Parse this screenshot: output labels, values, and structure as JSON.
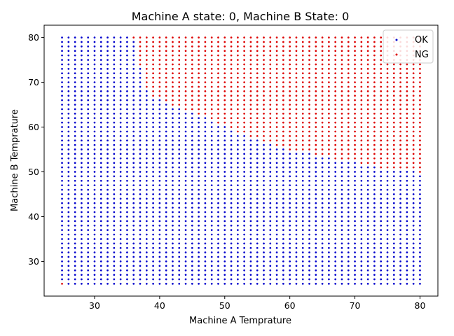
{
  "chart_data": {
    "type": "scatter",
    "title": "Machine A state: 0, Machine B State: 0",
    "xlabel": "Machine A Temprature",
    "ylabel": "Machine B Temprature",
    "xlim": [
      22.25,
      82.75
    ],
    "ylim": [
      22.25,
      82.75
    ],
    "xticks": [
      30,
      40,
      50,
      60,
      70,
      80
    ],
    "yticks": [
      30,
      40,
      50,
      60,
      70,
      80
    ],
    "grid": false,
    "legend_position": "top-right",
    "x": {
      "start": 25,
      "stop": 80,
      "step": 1
    },
    "y": {
      "start": 25,
      "stop": 80,
      "step": 1
    },
    "series": [
      {
        "name": "OK",
        "color": "#0000cc",
        "rule": "y below boundary(x)"
      },
      {
        "name": "NG",
        "color": "#dd0000",
        "rule": "y at or above boundary(x)"
      }
    ],
    "boundary": {
      "x": [
        25,
        26,
        27,
        28,
        29,
        30,
        31,
        32,
        33,
        34,
        35,
        36,
        37,
        38,
        39,
        40,
        41,
        42,
        43,
        44,
        45,
        46,
        47,
        48,
        49,
        50,
        51,
        52,
        53,
        54,
        55,
        56,
        57,
        58,
        59,
        60,
        61,
        62,
        63,
        64,
        65,
        66,
        67,
        68,
        69,
        70,
        71,
        72,
        73,
        74,
        75,
        76,
        77,
        78,
        79,
        80
      ],
      "min_ng_y": [
        81,
        81,
        81,
        81,
        81,
        81,
        81,
        81,
        81,
        81,
        81,
        80,
        74,
        69,
        67,
        67,
        66,
        65,
        65,
        64,
        64,
        63,
        63,
        62,
        61,
        61,
        60,
        59,
        59,
        58,
        58,
        57,
        57,
        56,
        56,
        55,
        55,
        55,
        55,
        54,
        54,
        54,
        53,
        53,
        53,
        53,
        52,
        52,
        52,
        51,
        51,
        51,
        51,
        51,
        51,
        50
      ]
    },
    "extra_ng_points": [
      {
        "x": 25,
        "y": 25
      }
    ]
  }
}
